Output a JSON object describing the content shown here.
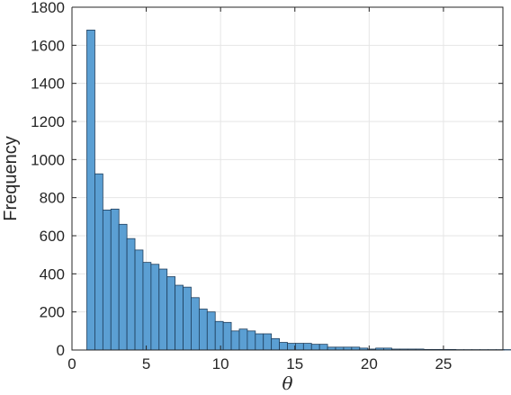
{
  "chart_data": {
    "type": "bar",
    "subtype": "histogram",
    "xlabel": "θ",
    "ylabel": "Frequency",
    "xlim": [
      0,
      29
    ],
    "ylim": [
      0,
      1800
    ],
    "xticks": [
      0,
      5,
      10,
      15,
      20,
      25
    ],
    "yticks": [
      0,
      200,
      400,
      600,
      800,
      1000,
      1200,
      1400,
      1600,
      1800
    ],
    "grid": true,
    "bar_color": "#5b9fd3",
    "edge_color": "#1e3e5c",
    "bin_width": 0.54,
    "bin_start": 1.0,
    "values": [
      1680,
      925,
      735,
      740,
      660,
      585,
      525,
      460,
      450,
      425,
      385,
      340,
      330,
      275,
      215,
      200,
      150,
      145,
      100,
      110,
      100,
      85,
      85,
      60,
      40,
      35,
      35,
      35,
      30,
      30,
      15,
      15,
      15,
      15,
      10,
      5,
      10,
      10,
      5,
      5,
      5,
      5,
      3,
      3,
      3,
      3,
      2,
      2,
      2,
      2,
      2,
      2,
      2,
      2
    ]
  }
}
